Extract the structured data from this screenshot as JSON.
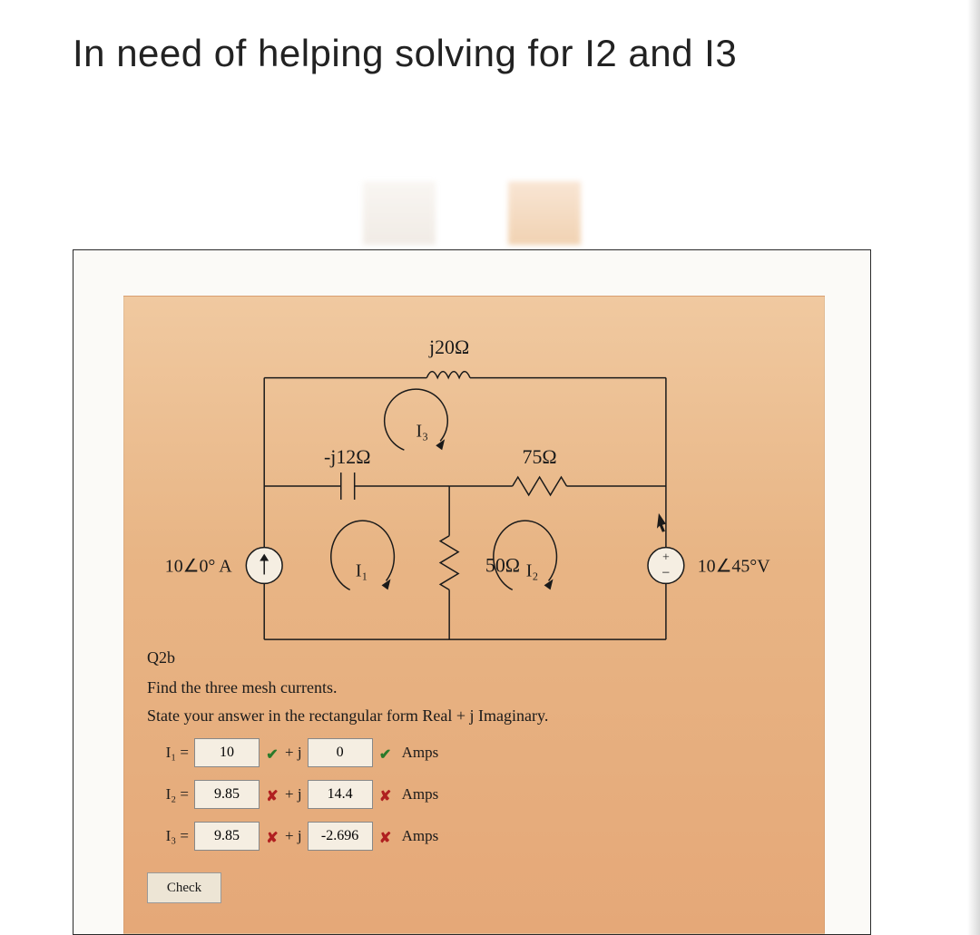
{
  "title": "In need of helping solving for I2 and I3",
  "circuit": {
    "elements": {
      "j20": "j20Ω",
      "neg_j12": "-j12Ω",
      "r75": "75Ω",
      "r50": "50Ω",
      "i1": "I₁",
      "i2": "I₂",
      "i3": "I₃",
      "src_left": "10∠0° A",
      "src_right": "10∠45°V"
    },
    "colors": {
      "wire": "#1a1a1a",
      "text": "#1a1a1a"
    }
  },
  "question": {
    "label": "Q2b",
    "line1": "Find the three mesh currents.",
    "line2": "State your answer in the rectangular form Real + j Imaginary."
  },
  "answers": {
    "rows": [
      {
        "lhs": "I₁ =",
        "real": "10",
        "real_ok": true,
        "imag": "0",
        "imag_ok": true,
        "unit": "Amps"
      },
      {
        "lhs": "I₂ =",
        "real": "9.85",
        "real_ok": false,
        "imag": "14.4",
        "imag_ok": false,
        "unit": "Amps"
      },
      {
        "lhs": "I₃ =",
        "real": "9.85",
        "real_ok": false,
        "imag": "-2.696",
        "imag_ok": false,
        "unit": "Amps"
      }
    ],
    "plusj": "+ j",
    "check": "Check"
  },
  "marks": {
    "correct": "✔",
    "wrong": "✘"
  }
}
